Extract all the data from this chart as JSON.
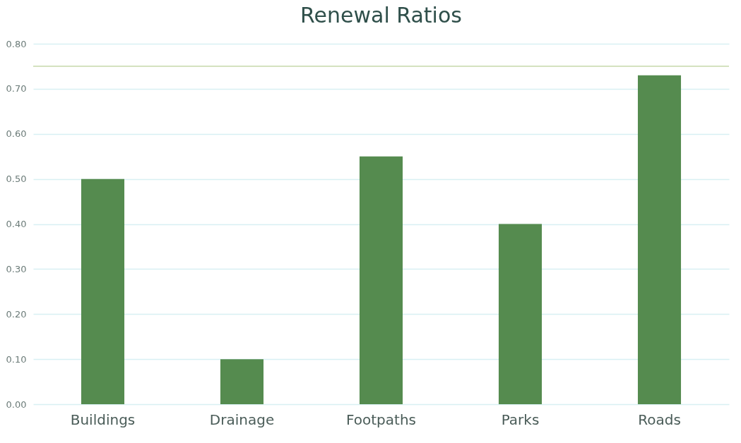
{
  "chart_data": {
    "type": "bar",
    "title": "Renewal Ratios",
    "categories": [
      "Buildings",
      "Drainage",
      "Footpaths",
      "Parks",
      "Roads"
    ],
    "values": [
      0.5,
      0.1,
      0.55,
      0.4,
      0.73
    ],
    "color": "#558b4f",
    "ylim": [
      0,
      0.8
    ],
    "yticks": [
      {
        "value": 0,
        "label": "0.00"
      },
      {
        "value": 0.1,
        "label": "0.10"
      },
      {
        "value": 0.2,
        "label": "0.20"
      },
      {
        "value": 0.3,
        "label": "0.30"
      },
      {
        "value": 0.4,
        "label": "0.40"
      },
      {
        "value": 0.5,
        "label": "0.50"
      },
      {
        "value": 0.6,
        "label": "0.60"
      },
      {
        "value": 0.7,
        "label": "0.70"
      },
      {
        "value": 0.8,
        "label": "0.80"
      }
    ],
    "grid": "y",
    "ref_lines": [
      {
        "axis": "y",
        "value": 0.75,
        "color": "#a9c47f"
      }
    ]
  }
}
